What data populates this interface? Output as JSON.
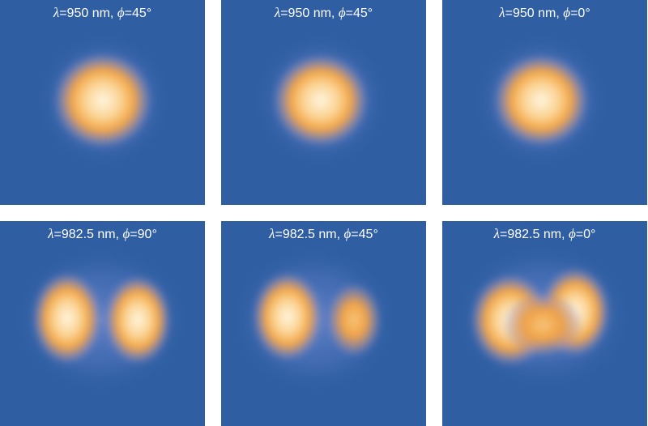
{
  "colors": {
    "background": "#2f5ea2",
    "halo": "#7f95e0",
    "lobe_mid": "#f2a948",
    "lobe_core": "#fff3dc"
  },
  "panels": [
    {
      "symbol_lambda": "λ",
      "lambda": "=950 nm, ",
      "symbol_phi": "ϕ",
      "phi": "=45°"
    },
    {
      "symbol_lambda": "λ",
      "lambda": "=950 nm, ",
      "symbol_phi": "ϕ",
      "phi": "=45°"
    },
    {
      "symbol_lambda": "λ",
      "lambda": "=950 nm, ",
      "symbol_phi": "ϕ",
      "phi": "=0°"
    },
    {
      "symbol_lambda": "λ",
      "lambda": "=982.5 nm, ",
      "symbol_phi": "ϕ",
      "phi": "=90°"
    },
    {
      "symbol_lambda": "λ",
      "lambda": "=982.5 nm, ",
      "symbol_phi": "ϕ",
      "phi": "=45°"
    },
    {
      "symbol_lambda": "λ",
      "lambda": "=982.5 nm, ",
      "symbol_phi": "ϕ",
      "phi": "=0°"
    }
  ]
}
